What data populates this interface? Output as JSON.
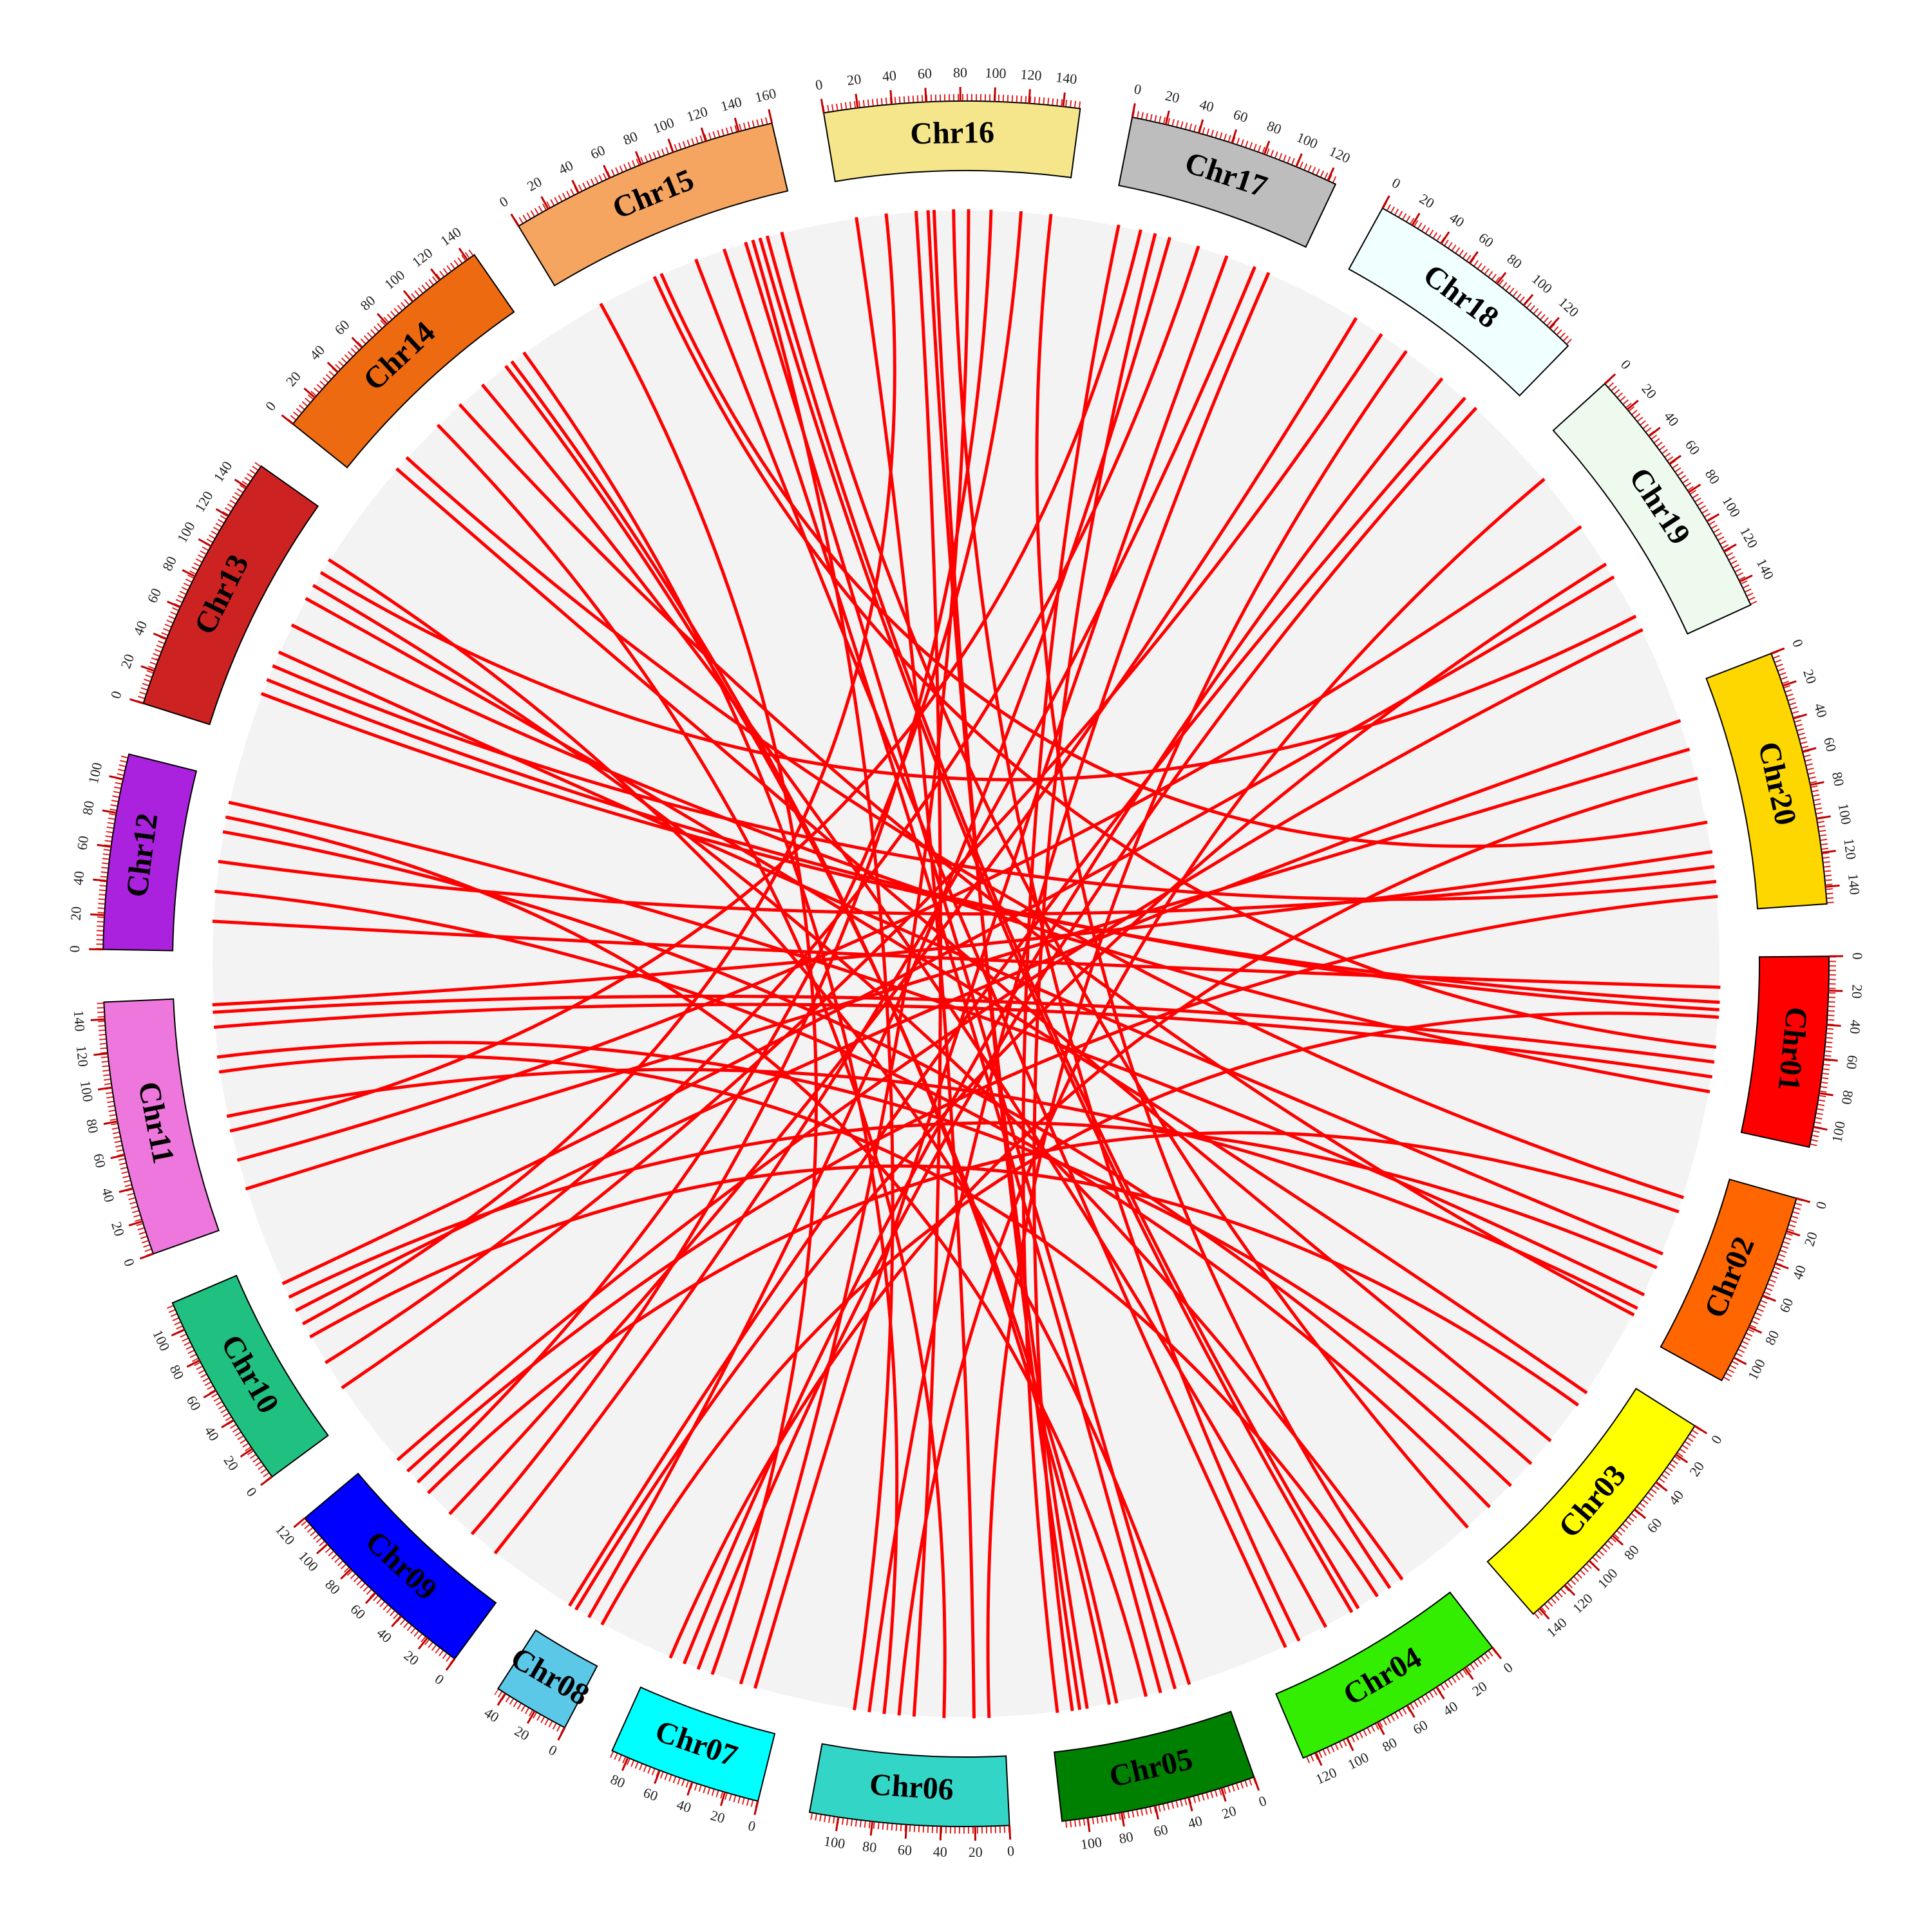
{
  "chart_data": {
    "type": "circos",
    "ticks": [
      0,
      20,
      40,
      60,
      80,
      100,
      120,
      140,
      160
    ],
    "link_color": "#ff0000",
    "chromosomes": [
      {
        "name": "Chr01",
        "color": "#ff0000",
        "length": 112
      },
      {
        "name": "Chr02",
        "color": "#ff6600",
        "length": 115
      },
      {
        "name": "Chr03",
        "color": "#ffff00",
        "length": 145
      },
      {
        "name": "Chr04",
        "color": "#33ee00",
        "length": 128
      },
      {
        "name": "Chr05",
        "color": "#008000",
        "length": 115
      },
      {
        "name": "Chr06",
        "color": "#33d6c6",
        "length": 117
      },
      {
        "name": "Chr07",
        "color": "#00ffff",
        "length": 90
      },
      {
        "name": "Chr08",
        "color": "#5bc8e8",
        "length": 45
      },
      {
        "name": "Chr09",
        "color": "#0000ff",
        "length": 120
      },
      {
        "name": "Chr10",
        "color": "#20c080",
        "length": 117
      },
      {
        "name": "Chr11",
        "color": "#ee77dd",
        "length": 150
      },
      {
        "name": "Chr12",
        "color": "#aa22dd",
        "length": 115
      },
      {
        "name": "Chr13",
        "color": "#cc2222",
        "length": 155
      },
      {
        "name": "Chr14",
        "color": "#ee6a10",
        "length": 145
      },
      {
        "name": "Chr15",
        "color": "#f5a560",
        "length": 160
      },
      {
        "name": "Chr16",
        "color": "#f5e68c",
        "length": 150
      },
      {
        "name": "Chr17",
        "color": "#bdbdbd",
        "length": 125
      },
      {
        "name": "Chr18",
        "color": "#f0ffff",
        "length": 135
      },
      {
        "name": "Chr19",
        "color": "#eefaee",
        "length": 155
      },
      {
        "name": "Chr20",
        "color": "#ffd700",
        "length": 150
      }
    ],
    "links": [
      [
        "Chr16",
        10,
        "Chr06",
        20
      ],
      [
        "Chr16",
        50,
        "Chr06",
        60
      ],
      [
        "Chr16",
        58,
        "Chr05",
        90
      ],
      [
        "Chr16",
        62,
        "Chr05",
        95
      ],
      [
        "Chr16",
        75,
        "Chr04",
        100
      ],
      [
        "Chr16",
        85,
        "Chr07",
        30
      ],
      [
        "Chr16",
        100,
        "Chr09",
        40
      ],
      [
        "Chr15",
        110,
        "Chr05",
        40
      ],
      [
        "Chr15",
        125,
        "Chr05",
        30
      ],
      [
        "Chr15",
        130,
        "Chr06",
        100
      ],
      [
        "Chr15",
        135,
        "Chr04",
        60
      ],
      [
        "Chr15",
        140,
        "Chr04",
        55
      ],
      [
        "Chr15",
        60,
        "Chr01",
        60
      ],
      [
        "Chr15",
        65,
        "Chr20",
        90
      ],
      [
        "Chr14",
        20,
        "Chr03",
        60
      ],
      [
        "Chr14",
        30,
        "Chr02",
        20
      ],
      [
        "Chr14",
        120,
        "Chr05",
        70
      ],
      [
        "Chr14",
        125,
        "Chr05",
        75
      ],
      [
        "Chr14",
        135,
        "Chr06",
        80
      ],
      [
        "Chr13",
        30,
        "Chr01",
        30
      ],
      [
        "Chr13",
        40,
        "Chr01",
        35
      ],
      [
        "Chr13",
        50,
        "Chr20",
        130
      ],
      [
        "Chr13",
        60,
        "Chr02",
        60
      ],
      [
        "Chr13",
        100,
        "Chr03",
        20
      ],
      [
        "Chr13",
        110,
        "Chr04",
        20
      ],
      [
        "Chr13",
        120,
        "Chr19",
        130
      ],
      [
        "Chr12",
        20,
        "Chr01",
        20
      ],
      [
        "Chr12",
        60,
        "Chr20",
        120
      ],
      [
        "Chr12",
        80,
        "Chr03",
        100
      ],
      [
        "Chr12",
        100,
        "Chr02",
        90
      ],
      [
        "Chr11",
        20,
        "Chr20",
        40
      ],
      [
        "Chr11",
        40,
        "Chr19",
        60
      ],
      [
        "Chr11",
        60,
        "Chr17",
        20
      ],
      [
        "Chr11",
        130,
        "Chr01",
        80
      ],
      [
        "Chr11",
        140,
        "Chr01",
        70
      ],
      [
        "Chr11",
        145,
        "Chr20",
        110
      ],
      [
        "Chr10",
        20,
        "Chr18",
        40
      ],
      [
        "Chr10",
        40,
        "Chr17",
        60
      ],
      [
        "Chr10",
        70,
        "Chr16",
        30
      ],
      [
        "Chr10",
        80,
        "Chr20",
        20
      ],
      [
        "Chr10",
        100,
        "Chr19",
        100
      ],
      [
        "Chr09",
        20,
        "Chr17",
        100
      ],
      [
        "Chr09",
        60,
        "Chr18",
        20
      ],
      [
        "Chr09",
        90,
        "Chr16",
        120
      ],
      [
        "Chr09",
        110,
        "Chr19",
        140
      ],
      [
        "Chr08",
        20,
        "Chr17",
        40
      ],
      [
        "Chr08",
        35,
        "Chr18",
        110
      ],
      [
        "Chr07",
        20,
        "Chr17",
        80
      ],
      [
        "Chr07",
        50,
        "Chr15",
        20
      ],
      [
        "Chr07",
        70,
        "Chr18",
        90
      ],
      [
        "Chr06",
        40,
        "Chr14",
        60
      ],
      [
        "Chr06",
        90,
        "Chr17",
        110
      ],
      [
        "Chr05",
        20,
        "Chr13",
        130
      ],
      [
        "Chr05",
        50,
        "Chr12",
        90
      ],
      [
        "Chr05",
        100,
        "Chr17",
        30
      ],
      [
        "Chr04",
        40,
        "Chr11",
        100
      ],
      [
        "Chr04",
        80,
        "Chr14",
        100
      ],
      [
        "Chr04",
        110,
        "Chr15",
        90
      ],
      [
        "Chr03",
        30,
        "Chr10",
        60
      ],
      [
        "Chr03",
        80,
        "Chr11",
        110
      ],
      [
        "Chr03",
        120,
        "Chr12",
        40
      ],
      [
        "Chr02",
        30,
        "Chr09",
        80
      ],
      [
        "Chr02",
        70,
        "Chr10",
        90
      ],
      [
        "Chr02",
        100,
        "Chr11",
        70
      ],
      [
        "Chr01",
        40,
        "Chr08",
        10
      ],
      [
        "Chr01",
        90,
        "Chr13",
        80
      ],
      [
        "Chr20",
        60,
        "Chr07",
        80
      ],
      [
        "Chr20",
        140,
        "Chr09",
        100
      ],
      [
        "Chr19",
        20,
        "Chr06",
        70
      ],
      [
        "Chr19",
        90,
        "Chr08",
        30
      ],
      [
        "Chr18",
        60,
        "Chr06",
        10
      ],
      [
        "Chr18",
        120,
        "Chr07",
        60
      ],
      [
        "Chr17",
        5,
        "Chr05",
        110
      ],
      [
        "Chr16",
        140,
        "Chr04",
        30
      ],
      [
        "Chr15",
        150,
        "Chr03",
        140
      ],
      [
        "Chr14",
        80,
        "Chr02",
        105
      ]
    ]
  }
}
